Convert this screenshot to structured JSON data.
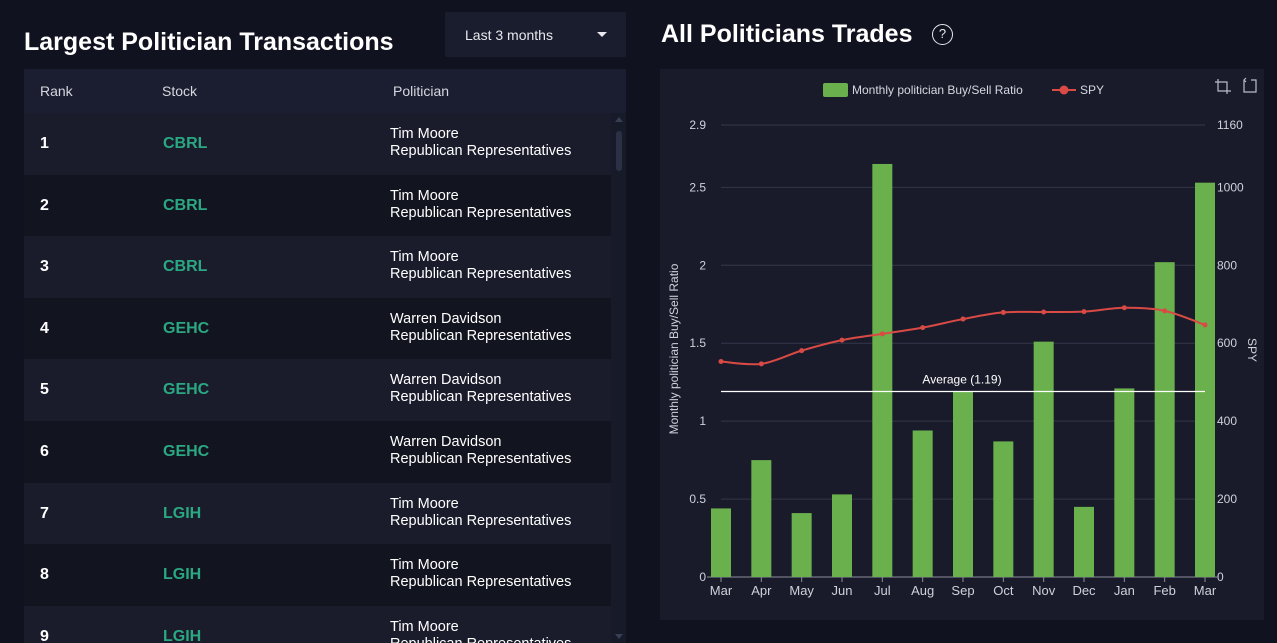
{
  "left": {
    "title": "Largest Politician Transactions",
    "period": "Last 3 months",
    "columns": {
      "rank": "Rank",
      "stock": "Stock",
      "politician": "Politician"
    },
    "rows": [
      {
        "rank": "1",
        "stock": "CBRL",
        "name": "Tim Moore",
        "affiliation": "Republican Representatives"
      },
      {
        "rank": "2",
        "stock": "CBRL",
        "name": "Tim Moore",
        "affiliation": "Republican Representatives"
      },
      {
        "rank": "3",
        "stock": "CBRL",
        "name": "Tim Moore",
        "affiliation": "Republican Representatives"
      },
      {
        "rank": "4",
        "stock": "GEHC",
        "name": "Warren Davidson",
        "affiliation": "Republican Representatives"
      },
      {
        "rank": "5",
        "stock": "GEHC",
        "name": "Warren Davidson",
        "affiliation": "Republican Representatives"
      },
      {
        "rank": "6",
        "stock": "GEHC",
        "name": "Warren Davidson",
        "affiliation": "Republican Representatives"
      },
      {
        "rank": "7",
        "stock": "LGIH",
        "name": "Tim Moore",
        "affiliation": "Republican Representatives"
      },
      {
        "rank": "8",
        "stock": "LGIH",
        "name": "Tim Moore",
        "affiliation": "Republican Representatives"
      },
      {
        "rank": "9",
        "stock": "LGIH",
        "name": "Tim Moore",
        "affiliation": "Republican Representatives"
      }
    ]
  },
  "right": {
    "title": "All Politicians Trades",
    "help": "?"
  },
  "colors": {
    "bar": "#6ab04c",
    "line": "#d94a45",
    "stock_link": "#2aa882"
  },
  "chart_data": {
    "type": "bar",
    "categories": [
      "Mar",
      "Apr",
      "May",
      "Jun",
      "Jul",
      "Aug",
      "Sep",
      "Oct",
      "Nov",
      "Dec",
      "Jan",
      "Feb",
      "Mar"
    ],
    "series": [
      {
        "name": "Monthly politician Buy/Sell Ratio",
        "type": "bar",
        "axis": "left",
        "values": [
          0.44,
          0.75,
          0.41,
          0.53,
          2.65,
          0.94,
          1.19,
          0.87,
          1.51,
          0.45,
          1.21,
          2.02,
          2.53
        ]
      },
      {
        "name": "SPY",
        "type": "line",
        "axis": "right",
        "values": [
          553,
          547,
          581,
          608,
          624,
          640,
          662,
          679,
          680,
          681,
          691,
          683,
          647
        ]
      }
    ],
    "ylabel": "Monthly politician Buy/Sell Ratio",
    "y2label": "SPY",
    "ylim": [
      0,
      2.9
    ],
    "y2lim": [
      0,
      1160
    ],
    "yticks": [
      "0",
      "0.5",
      "1",
      "1.5",
      "2",
      "2.5",
      "2.9"
    ],
    "ytick_values": [
      0,
      0.5,
      1,
      1.5,
      2,
      2.5,
      2.9
    ],
    "y2ticks": [
      "0",
      "200",
      "400",
      "600",
      "800",
      "1000",
      "1160"
    ],
    "y2tick_values": [
      0,
      200,
      400,
      600,
      800,
      1000,
      1160
    ],
    "average": {
      "value": 1.19,
      "label": "Average (1.19)"
    },
    "legend": [
      "Monthly politician Buy/Sell Ratio",
      "SPY"
    ],
    "legend_position": "top-center"
  }
}
